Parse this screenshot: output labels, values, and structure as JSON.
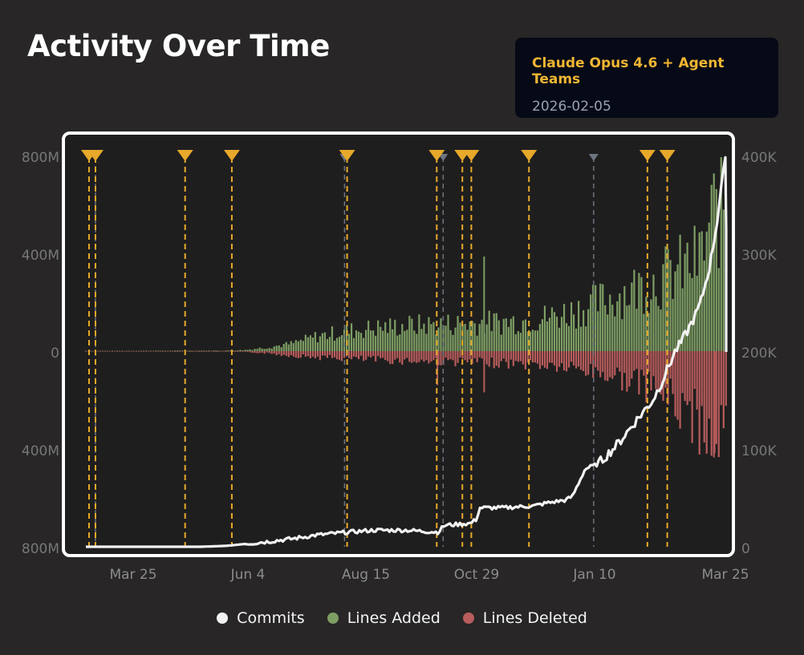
{
  "page": {
    "title": "Activity Over Time"
  },
  "tooltip": {
    "title": "Claude Opus 4.6 + Agent Teams",
    "date": "2026-02-05"
  },
  "colors": {
    "background": "#282626",
    "plot_background": "#1f1e1e",
    "commits": "#f2f2f2",
    "lines_added": "#7d9e64",
    "lines_deleted": "#b85c5c",
    "release_major": "#e6a92a",
    "release_minor": "#6c7580"
  },
  "chart_data": {
    "type": "area",
    "x_tick_labels": [
      "Mar 25",
      "Jun 4",
      "Aug 15",
      "Oct 29",
      "Jan 10",
      "Mar 25"
    ],
    "left_axis": {
      "tick_labels": [
        "800M",
        "400M",
        "0",
        "400M",
        "800M"
      ],
      "range": [
        -800,
        800
      ],
      "unit": "M"
    },
    "right_axis": {
      "tick_labels": [
        "400K",
        "300K",
        "200K",
        "100K",
        "0"
      ],
      "range": [
        0,
        400
      ],
      "unit": "K"
    },
    "grid": false,
    "legend_position": "bottom",
    "legend": [
      "Commits",
      "Lines Added",
      "Lines Deleted"
    ],
    "series": [
      {
        "name": "Commits",
        "axis": "right",
        "points": [
          [
            0,
            0
          ],
          [
            0.08,
            0
          ],
          [
            0.13,
            0
          ],
          [
            0.18,
            0
          ],
          [
            0.22,
            1
          ],
          [
            0.25,
            3
          ],
          [
            0.28,
            5
          ],
          [
            0.32,
            8
          ],
          [
            0.36,
            12
          ],
          [
            0.41,
            15
          ],
          [
            0.45,
            17
          ],
          [
            0.5,
            17
          ],
          [
            0.55,
            15
          ],
          [
            0.56,
            22
          ],
          [
            0.6,
            24
          ],
          [
            0.61,
            28
          ],
          [
            0.615,
            40
          ],
          [
            0.65,
            40
          ],
          [
            0.7,
            42
          ],
          [
            0.72,
            45
          ],
          [
            0.75,
            48
          ],
          [
            0.76,
            52
          ],
          [
            0.78,
            80
          ],
          [
            0.8,
            85
          ],
          [
            0.83,
            105
          ],
          [
            0.86,
            130
          ],
          [
            0.885,
            150
          ],
          [
            0.9,
            170
          ],
          [
            0.92,
            200
          ],
          [
            0.93,
            210
          ],
          [
            0.95,
            235
          ],
          [
            0.96,
            250
          ],
          [
            0.975,
            290
          ],
          [
            0.985,
            330
          ],
          [
            0.992,
            370
          ],
          [
            1.0,
            400
          ],
          [
            1.005,
            200
          ]
        ]
      },
      {
        "name": "Lines Added",
        "axis": "left",
        "points": [
          [
            0,
            1
          ],
          [
            0.22,
            2
          ],
          [
            0.25,
            5
          ],
          [
            0.28,
            15
          ],
          [
            0.32,
            30
          ],
          [
            0.36,
            60
          ],
          [
            0.4,
            80
          ],
          [
            0.45,
            95
          ],
          [
            0.5,
            105
          ],
          [
            0.55,
            110
          ],
          [
            0.6,
            115
          ],
          [
            0.65,
            120
          ],
          [
            0.7,
            130
          ],
          [
            0.74,
            150
          ],
          [
            0.78,
            180
          ],
          [
            0.82,
            220
          ],
          [
            0.86,
            260
          ],
          [
            0.9,
            300
          ],
          [
            0.93,
            340
          ],
          [
            0.96,
            380
          ],
          [
            0.98,
            560
          ],
          [
            1.0,
            610
          ]
        ]
      },
      {
        "name": "Lines Deleted",
        "axis": "left",
        "points": [
          [
            0,
            -1
          ],
          [
            0.22,
            -2
          ],
          [
            0.25,
            -4
          ],
          [
            0.28,
            -8
          ],
          [
            0.32,
            -18
          ],
          [
            0.36,
            -25
          ],
          [
            0.4,
            -30
          ],
          [
            0.45,
            -35
          ],
          [
            0.5,
            -40
          ],
          [
            0.55,
            -42
          ],
          [
            0.6,
            -45
          ],
          [
            0.65,
            -50
          ],
          [
            0.7,
            -55
          ],
          [
            0.74,
            -65
          ],
          [
            0.78,
            -80
          ],
          [
            0.82,
            -100
          ],
          [
            0.86,
            -130
          ],
          [
            0.9,
            -170
          ],
          [
            0.93,
            -240
          ],
          [
            0.96,
            -300
          ],
          [
            0.98,
            -360
          ],
          [
            1.0,
            -330
          ]
        ]
      }
    ],
    "annotations": {
      "major_releases": [
        0.005,
        0.015,
        0.155,
        0.228,
        0.408,
        0.548,
        0.588,
        0.602,
        0.692,
        0.877,
        0.908
      ],
      "minor_releases": [
        0.015,
        0.404,
        0.558,
        0.793
      ]
    },
    "spikes": [
      {
        "x": 0.622,
        "added": 390,
        "deleted": -170
      },
      {
        "x": 0.549,
        "deleted": -140
      },
      {
        "x": 0.982,
        "deleted": -420
      }
    ]
  }
}
